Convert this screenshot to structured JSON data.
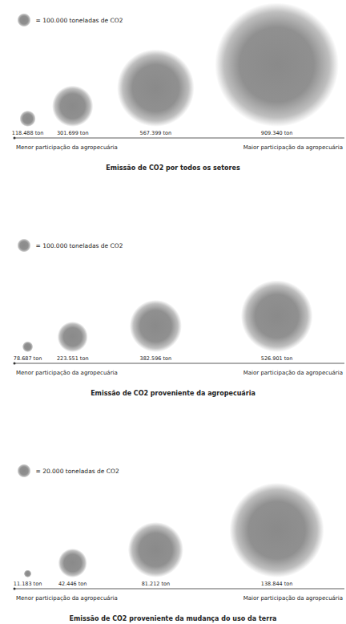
{
  "chart_data": [
    {
      "type": "bubble",
      "title": "Emissão de CO2 por todos os setores",
      "values": [
        118488,
        301699,
        567399,
        909340
      ],
      "value_labels": [
        "118.488 ton",
        "301.699 ton",
        "567.399 ton",
        "909.340 ton"
      ],
      "data_labels": true,
      "color": "#8a8a8a",
      "scale": {
        "value": 100000,
        "label": "= 100.000 toneladas de CO2"
      },
      "axis_labels": [
        "Menor participação da agropecuária",
        "Maior participação da agropecuária"
      ]
    },
    {
      "type": "bubble",
      "title": "Emissão de CO2 proveniente da agropecuária",
      "values": [
        78687,
        223551,
        382596,
        526901
      ],
      "value_labels": [
        "78.687 ton",
        "223.551 ton",
        "382.596 ton",
        "526.901 ton"
      ],
      "data_labels": true,
      "color": "#8a8a8a",
      "scale": {
        "value": 100000,
        "label": "= 100.000 toneladas de CO2"
      },
      "axis_labels": [
        "Menor participação da agropecuária",
        "Maior participação da agropecuária"
      ]
    },
    {
      "type": "bubble",
      "title": "Emissão de CO2 proveniente da mudança do uso da terra",
      "values": [
        11183,
        42446,
        81212,
        138844
      ],
      "value_labels": [
        "11.183 ton",
        "42.446 ton",
        "81.212 ton",
        "138.844 ton"
      ],
      "data_labels": true,
      "color": "#8a8a8a",
      "scale": {
        "value": 20000,
        "label": "= 20.000 toneladas de CO2"
      },
      "axis_labels": [
        "Menor participação da agropecuária",
        "Maior participação da agropecuária"
      ]
    }
  ]
}
